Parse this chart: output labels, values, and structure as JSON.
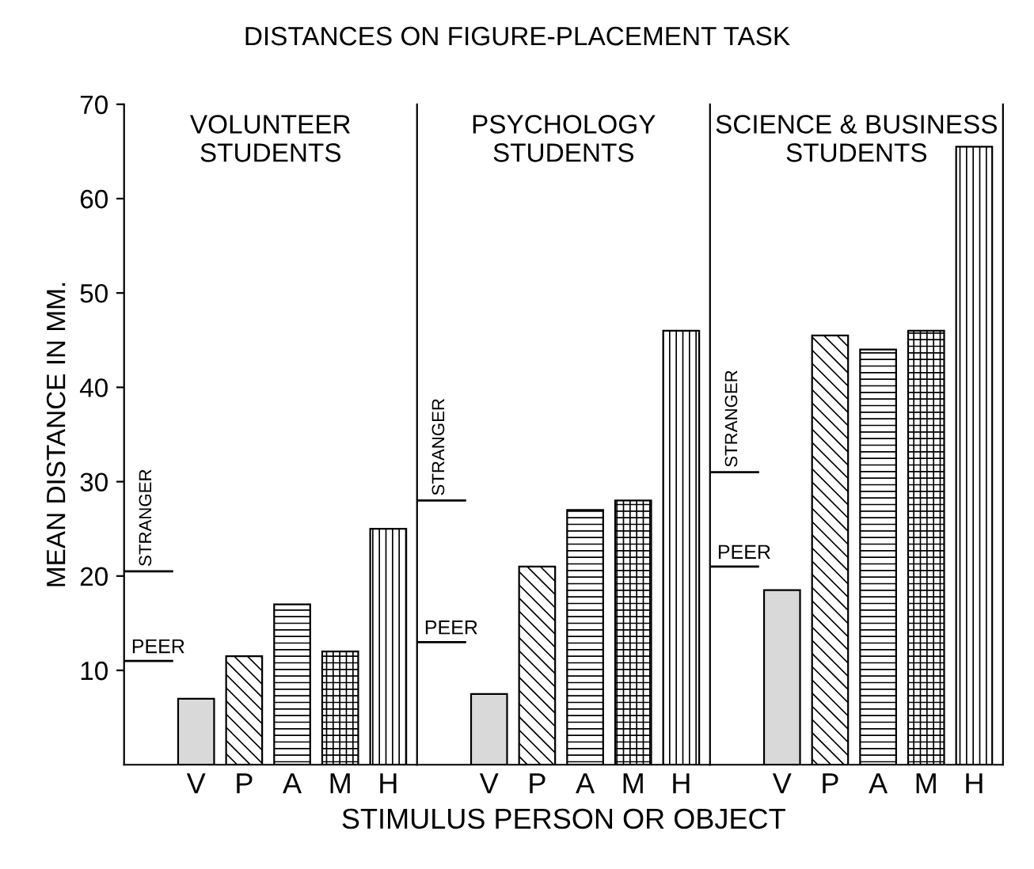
{
  "chart_data": [
    {
      "type": "bar",
      "title": "DISTANCES ON FIGURE-PLACEMENT TASK",
      "subtitle": "VOLUNTEER\nSTUDENTS",
      "ylabel": "MEAN DISTANCE IN MM.",
      "categories": [
        "V",
        "P",
        "A",
        "M",
        "H"
      ],
      "values": [
        7,
        11.5,
        17,
        12,
        25
      ],
      "colors": [
        "#d9d9d9",
        "#000000",
        "#000000",
        "#000000",
        "#000000"
      ],
      "ylim": [
        0,
        70
      ],
      "yticks": [
        10,
        20,
        30,
        40,
        50,
        60,
        70
      ],
      "ref_lines": [
        {
          "axis": "y",
          "value": 11,
          "label": "PEER"
        },
        {
          "axis": "y",
          "value": 20.5,
          "label": "STRANGER"
        }
      ]
    },
    {
      "type": "bar",
      "subtitle": "PSYCHOLOGY\nSTUDENTS",
      "xlabel": "STIMULUS PERSON OR OBJECT",
      "categories": [
        "V",
        "P",
        "A",
        "M",
        "H"
      ],
      "values": [
        7.5,
        21,
        27,
        28,
        46
      ],
      "colors": [
        "#d9d9d9",
        "#000000",
        "#000000",
        "#000000",
        "#000000"
      ],
      "ylim": [
        0,
        70
      ],
      "tick_labels": "x",
      "ref_lines": [
        {
          "axis": "y",
          "value": 13,
          "label": "PEER"
        },
        {
          "axis": "y",
          "value": 28,
          "label": "STRANGER"
        }
      ]
    },
    {
      "type": "bar",
      "subtitle": "SCIENCE & BUSINESS\nSTUDENTS",
      "categories": [
        "V",
        "P",
        "A",
        "M",
        "H"
      ],
      "values": [
        18.5,
        45.5,
        44,
        46,
        65.5
      ],
      "colors": [
        "#d9d9d9",
        "#000000",
        "#000000",
        "#000000",
        "#000000"
      ],
      "ylim": [
        0,
        70
      ],
      "tick_labels": "x",
      "ref_lines": [
        {
          "axis": "y",
          "value": 21,
          "label": "PEER"
        },
        {
          "axis": "y",
          "value": 31,
          "label": "STRANGER"
        }
      ]
    }
  ]
}
